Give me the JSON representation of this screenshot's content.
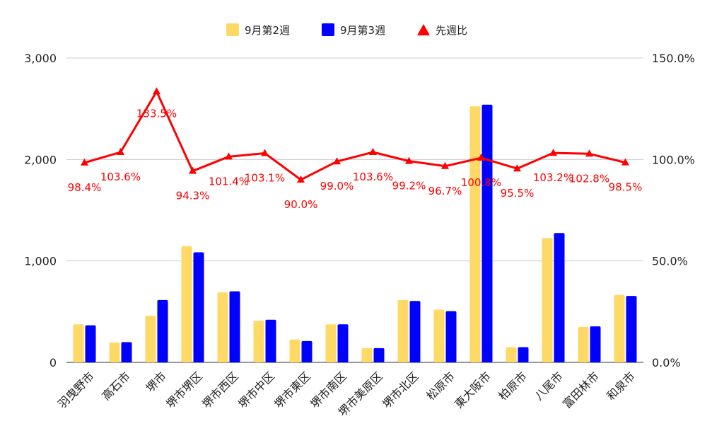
{
  "chart_data": {
    "type": "bar",
    "categories": [
      "羽曳野市",
      "高石市",
      "堺市",
      "堺市堺区",
      "堺市西区",
      "堺市中区",
      "堺市東区",
      "堺市南区",
      "堺市美原区",
      "堺市北区",
      "松原市",
      "東大阪市",
      "柏原市",
      "八尾市",
      "富田林市",
      "和泉市"
    ],
    "series": [
      {
        "name": "9月第2週",
        "kind": "bar",
        "axis": "left",
        "color": "#FFD966",
        "values": [
          375,
          195,
          460,
          1145,
          690,
          410,
          225,
          375,
          140,
          615,
          520,
          2525,
          150,
          1225,
          350,
          665
        ]
      },
      {
        "name": "9月第3週",
        "kind": "bar",
        "axis": "left",
        "color": "#0000FF",
        "values": [
          365,
          200,
          615,
          1085,
          700,
          420,
          210,
          375,
          140,
          605,
          505,
          2540,
          150,
          1275,
          355,
          655
        ]
      },
      {
        "name": "先週比",
        "kind": "line",
        "axis": "right",
        "color": "#FF0000",
        "values": [
          98.4,
          103.6,
          133.5,
          94.3,
          101.4,
          103.1,
          90.0,
          99.0,
          103.6,
          99.2,
          96.7,
          100.8,
          95.5,
          103.2,
          102.8,
          98.5
        ],
        "labels": [
          "98.4%",
          "103.6%",
          "133.5%",
          "94.3%",
          "101.4%",
          "103.1%",
          "90.0%",
          "99.0%",
          "103.6%",
          "99.2%",
          "96.7%",
          "100.8%",
          "95.5%",
          "103.2%",
          "102.8%",
          "98.5%"
        ]
      }
    ],
    "left_axis": {
      "min": 0,
      "max": 3000,
      "ticks": [
        0,
        1000,
        2000,
        3000
      ],
      "tick_labels": [
        "0",
        "1,000",
        "2,000",
        "3,000"
      ]
    },
    "right_axis": {
      "min": 0,
      "max": 150,
      "ticks": [
        0,
        50,
        100,
        150
      ],
      "tick_labels": [
        "0.0%",
        "50.0%",
        "100.0%",
        "150.0%"
      ]
    },
    "grid": true,
    "legend": {
      "position": "top"
    }
  }
}
